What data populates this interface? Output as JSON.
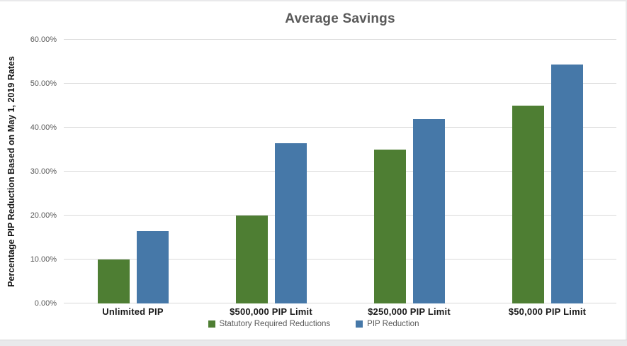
{
  "page": {
    "background": "#ffffff",
    "edge_color": "#e9e9eb"
  },
  "chart_data": {
    "type": "bar",
    "title": "Average Savings",
    "title_color": "#595959",
    "ylabel": "Percentage PIP Reduction Based on May 1, 2019  Rates",
    "xlabel": "",
    "ylim": [
      0,
      60
    ],
    "ytick_step": 10,
    "yticks": [
      "0.00%",
      "10.00%",
      "20.00%",
      "30.00%",
      "40.00%",
      "50.00%",
      "60.00%"
    ],
    "ytick_color": "#595959",
    "grid": true,
    "grid_color": "#d9d9d9",
    "legend_position": "bottom",
    "legend_text_color": "#595959",
    "categories": [
      "Unlimited PIP",
      "$500,000 PIP Limit",
      "$250,000 PIP Limit",
      "$50,000 PIP Limit"
    ],
    "series": [
      {
        "name": "Statutory Required Reductions",
        "color": "#4e7e33",
        "values": [
          10.0,
          20.0,
          35.0,
          45.0
        ]
      },
      {
        "name": "PIP Reduction",
        "color": "#4678a8",
        "values": [
          16.5,
          36.4,
          42.0,
          54.3
        ]
      }
    ]
  }
}
